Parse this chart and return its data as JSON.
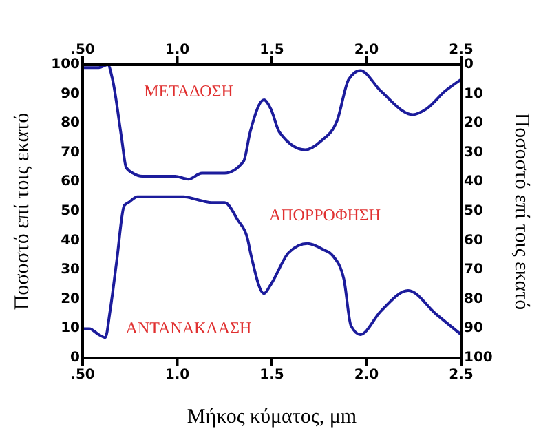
{
  "chart_data": {
    "type": "line",
    "xlabel": "Μήκος κύματος, μm",
    "ylabel": "Ποσοστό επί τοις εκατό",
    "y2label": "Ποσοστό επί τοις εκατό",
    "xlim": [
      0.5,
      2.5
    ],
    "xticks": [
      {
        "value": 0.5,
        "label": ".50"
      },
      {
        "value": 1,
        "label": "1.0"
      },
      {
        "value": 1.5,
        "label": "1.5"
      },
      {
        "value": 2,
        "label": "2.0"
      },
      {
        "value": 2.5,
        "label": "2.5"
      }
    ],
    "x2lim": [
      0.5,
      2.5
    ],
    "x2ticks": [
      {
        "value": 0.5,
        "label": ".50"
      },
      {
        "value": 1,
        "label": "1.0"
      },
      {
        "value": 1.5,
        "label": "1.5"
      },
      {
        "value": 2,
        "label": "2.0"
      },
      {
        "value": 2.5,
        "label": "2.5"
      }
    ],
    "ylim": [
      0,
      100
    ],
    "yticks": [
      0,
      10,
      20,
      30,
      40,
      50,
      60,
      70,
      80,
      90,
      100
    ],
    "y2lim": [
      100,
      0
    ],
    "y2ticks": [
      0,
      10,
      20,
      30,
      40,
      50,
      60,
      70,
      80,
      90,
      100
    ],
    "grid": false,
    "marker": "none",
    "line_style": "solid",
    "series": [
      {
        "color": "#1c1c9c",
        "x": [
          0.5,
          0.585,
          0.633,
          0.658,
          0.706,
          0.73,
          0.767,
          0.815,
          0.985,
          1.06,
          1.13,
          1.18,
          1.25,
          1.35,
          1.385,
          1.458,
          1.494,
          1.54,
          1.676,
          1.76,
          1.845,
          1.906,
          1.967,
          2.076,
          2.245,
          2.318,
          2.415,
          2.5
        ],
        "values": [
          99,
          99,
          100,
          95,
          75,
          65,
          63,
          62,
          62,
          61,
          63,
          63,
          63,
          67,
          77,
          88,
          85,
          77,
          71,
          74,
          81,
          95,
          98,
          91,
          83,
          85,
          91,
          95
        ]
      },
      {
        "color": "#1c1c9c",
        "axis": "y2",
        "x": [
          0.5,
          0.536,
          0.585,
          0.62,
          0.645,
          0.68,
          0.72,
          0.742,
          0.79,
          1.033,
          1.106,
          1.18,
          1.25,
          1.32,
          1.37,
          1.39,
          1.458,
          1.494,
          1.59,
          1.688,
          1.77,
          1.82,
          1.88,
          1.918,
          1.967,
          2.076,
          2.22,
          2.367,
          2.5
        ],
        "values": [
          90,
          90,
          92,
          93,
          84,
          67,
          48,
          47,
          45,
          45,
          46,
          47,
          47,
          53,
          59,
          65,
          78,
          75,
          64,
          61,
          63,
          65,
          73,
          89,
          92,
          84,
          77,
          85,
          92
        ]
      }
    ],
    "annotations": [
      "ΜΕΤΑΔΟΣΗ",
      "ΑΠΟΡΡΟΦΗΣΗ",
      "ΑΝΤΑΝΑΚΛΑΣΗ"
    ]
  }
}
